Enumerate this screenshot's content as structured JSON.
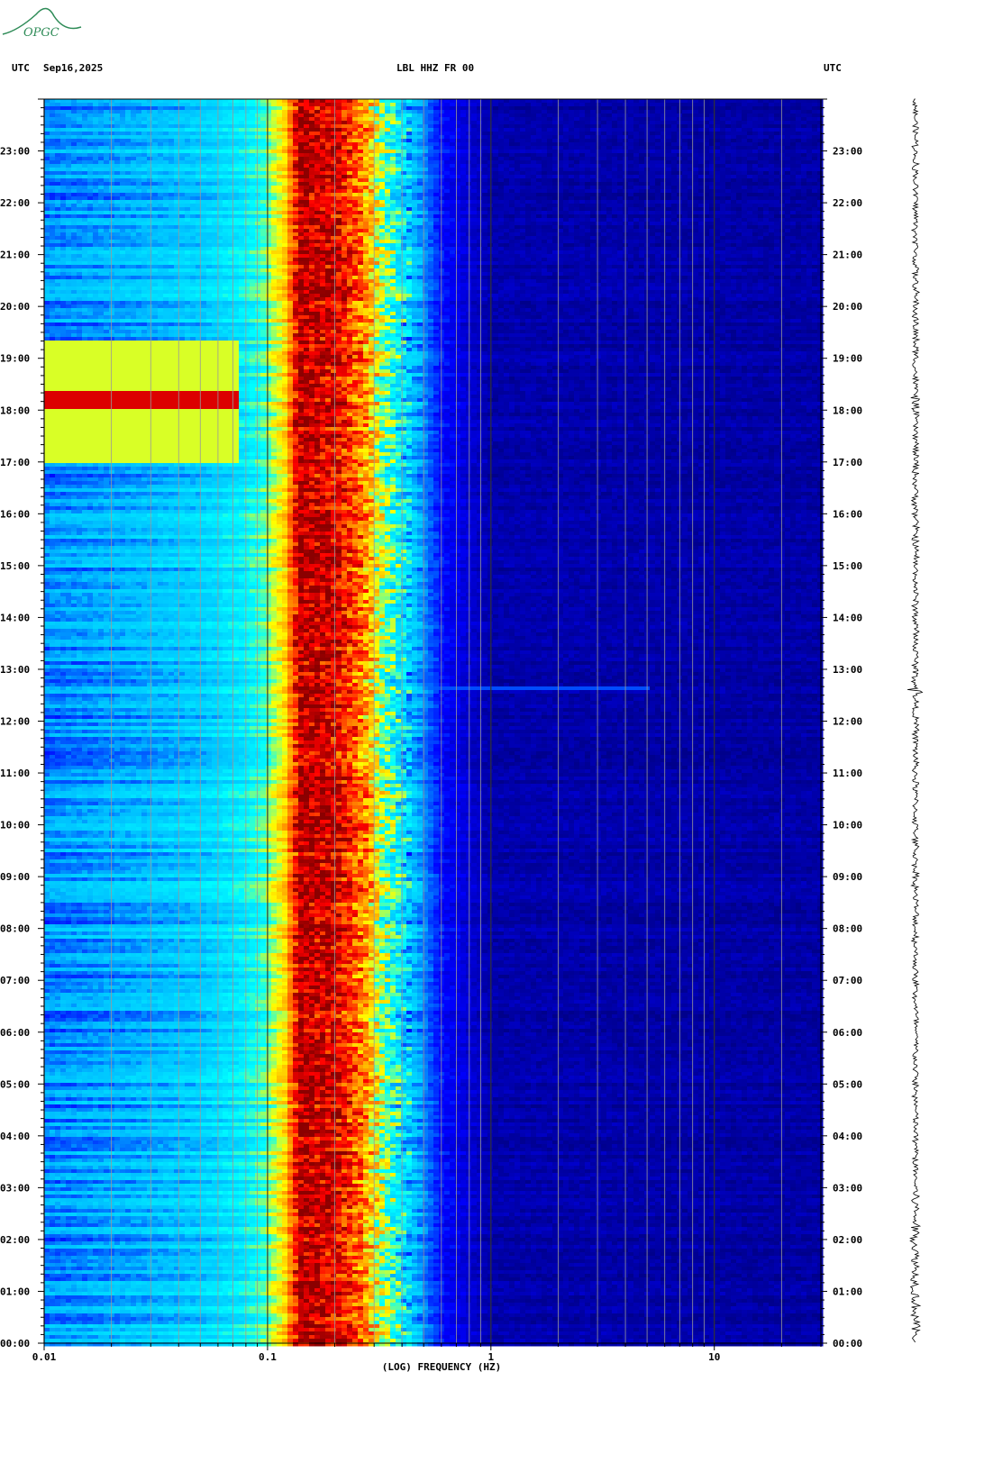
{
  "logo": {
    "text": "OPGC",
    "color": "#2e8b57"
  },
  "header": {
    "left_tz": "UTC",
    "date": "Sep16,2025",
    "station": "LBL HHZ FR 00",
    "right_tz": "UTC"
  },
  "chart_data": {
    "type": "heatmap",
    "title": "LBL HHZ FR 00",
    "xlabel": "(LOG) FREQUENCY (HZ)",
    "x_scale": "log",
    "xlim": [
      0.01,
      30
    ],
    "x_ticks": [
      "0.01",
      "0.1",
      "1",
      "10"
    ],
    "x_tick_values": [
      0.01,
      0.1,
      1,
      10
    ],
    "y_time_ticks": [
      "00:00",
      "01:00",
      "02:00",
      "03:00",
      "04:00",
      "05:00",
      "06:00",
      "07:00",
      "08:00",
      "09:00",
      "10:00",
      "11:00",
      "12:00",
      "13:00",
      "14:00",
      "15:00",
      "16:00",
      "17:00",
      "18:00",
      "19:00",
      "20:00",
      "21:00",
      "22:00",
      "23:00"
    ],
    "ylim_hours": [
      0,
      24
    ],
    "colormap": [
      "#00008b",
      "#0000ff",
      "#00bfff",
      "#00ffff",
      "#ffff00",
      "#ff8c00",
      "#ff0000",
      "#8b0000"
    ],
    "band_levels": [
      {
        "f": 0.01,
        "level": 0.24
      },
      {
        "f": 0.024,
        "level": 0.28
      },
      {
        "f": 0.05,
        "level": 0.32
      },
      {
        "f": 0.075,
        "level": 0.38
      },
      {
        "f": 0.095,
        "level": 0.45
      },
      {
        "f": 0.12,
        "level": 0.62
      },
      {
        "f": 0.14,
        "level": 0.95
      },
      {
        "f": 0.2,
        "level": 0.9
      },
      {
        "f": 0.27,
        "level": 0.72
      },
      {
        "f": 0.33,
        "level": 0.5
      },
      {
        "f": 0.45,
        "level": 0.3
      },
      {
        "f": 0.6,
        "level": 0.15
      },
      {
        "f": 1.0,
        "level": 0.04
      },
      {
        "f": 30,
        "level": 0.03
      }
    ],
    "events": [
      {
        "start_hour": 18.05,
        "end_hour": 18.4,
        "fmax": 0.075,
        "level": 0.9
      },
      {
        "start_hour": 17.0,
        "end_hour": 19.35,
        "fmax": 0.075,
        "level": 0.55
      },
      {
        "start_hour": 12.6,
        "end_hour": 12.65,
        "fmax": 5,
        "level": 0.2
      }
    ]
  }
}
